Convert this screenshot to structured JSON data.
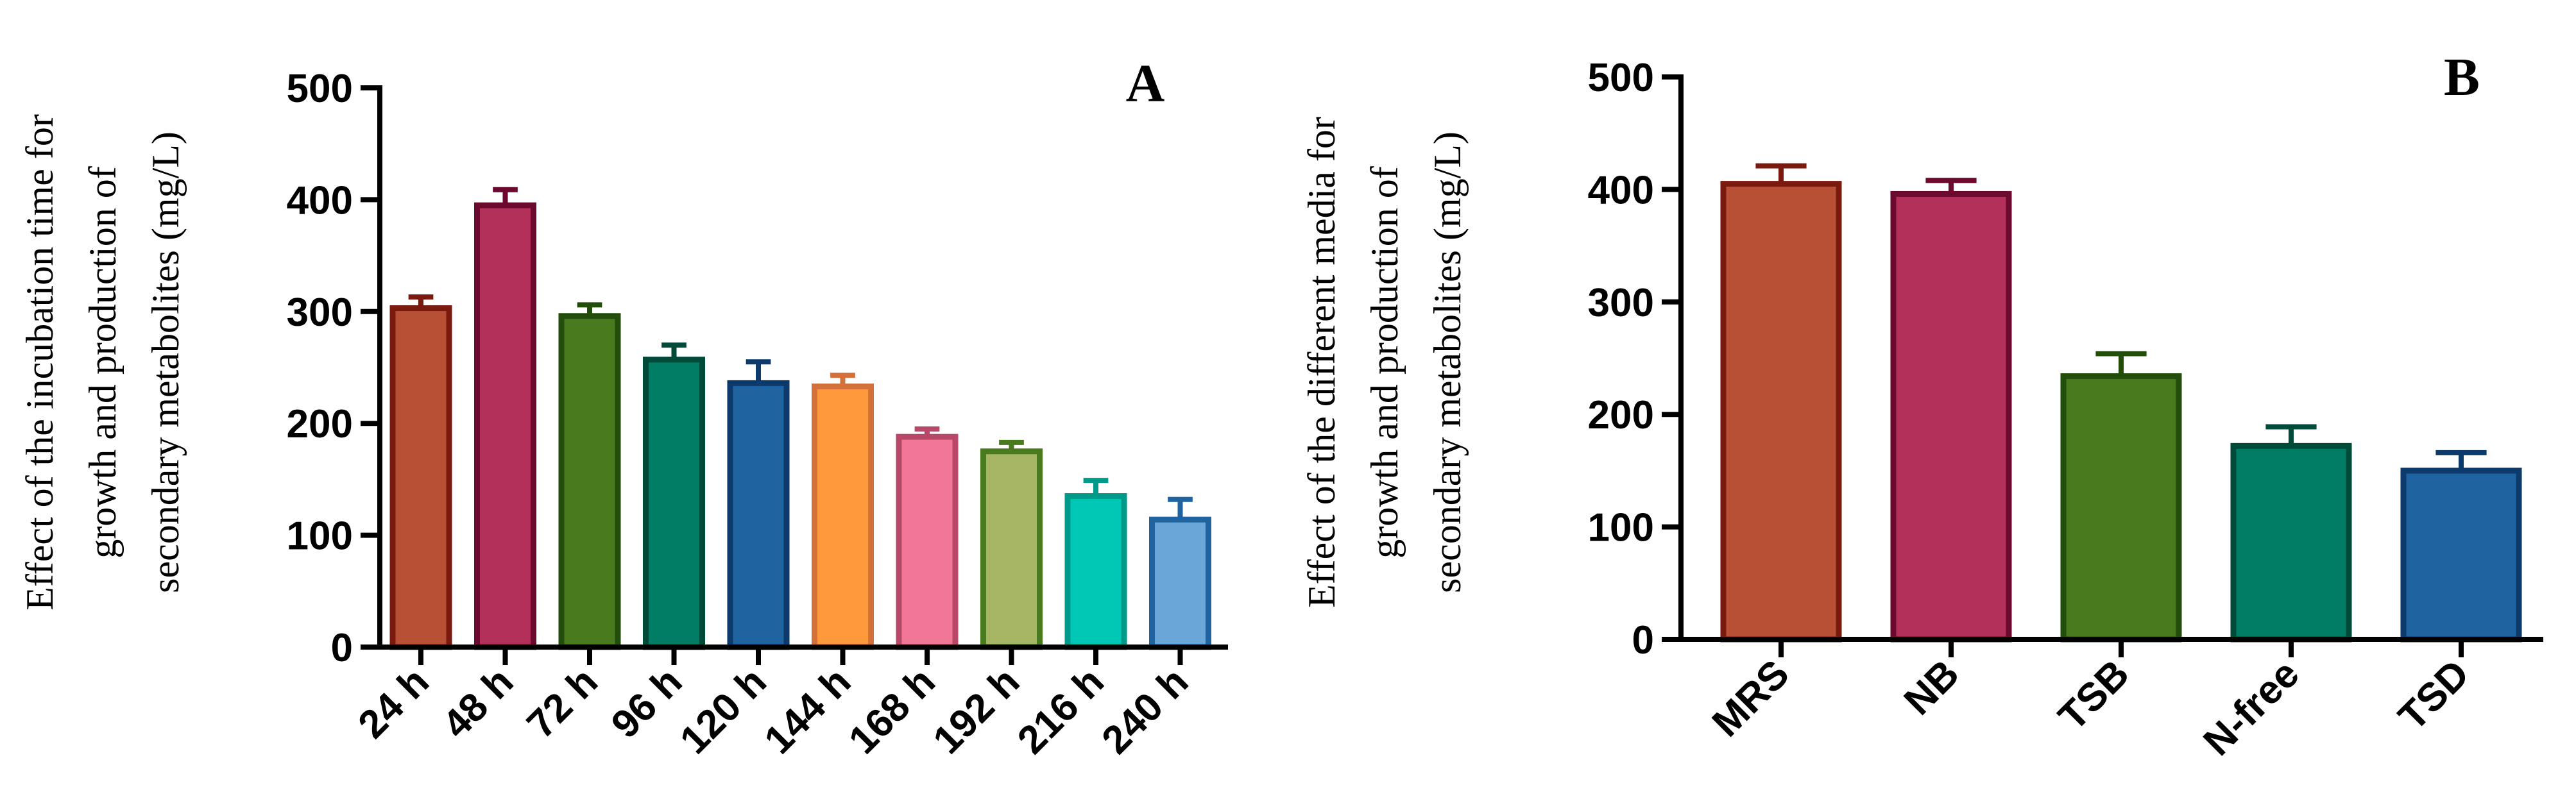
{
  "chart_data": [
    {
      "type": "bar",
      "panel_label": "A",
      "ylabel_lines": [
        "Effect of the incubation time for",
        "growth and production of",
        "secondary metabolites (mg/L)"
      ],
      "xlabel": "",
      "ylim": [
        0,
        500
      ],
      "yticks": [
        0,
        100,
        200,
        300,
        400,
        500
      ],
      "categories": [
        "24 h",
        "48 h",
        "72 h",
        "96 h",
        "120 h",
        "144 h",
        "168 h",
        "192 h",
        "216 h",
        "240 h"
      ],
      "values": [
        303,
        395,
        296,
        257,
        236,
        233,
        188,
        175,
        135,
        114
      ],
      "errors": [
        10,
        14,
        10,
        13,
        19,
        10,
        7,
        8,
        14,
        18
      ],
      "colors": {
        "fill": [
          "#b75034",
          "#b3305a",
          "#4a7a1e",
          "#007d64",
          "#1f63a0",
          "#ff9a3c",
          "#f07896",
          "#a6b664",
          "#00c8b4",
          "#6aa6d8"
        ],
        "stroke": [
          "#7a1a0e",
          "#6b0a2e",
          "#234d0a",
          "#004a3a",
          "#0c3a6a",
          "#d4703a",
          "#b84868",
          "#4a7a1e",
          "#009a8a",
          "#1f63a0"
        ]
      },
      "grid": false
    },
    {
      "type": "bar",
      "panel_label": "B",
      "ylabel_lines": [
        "Effect of the different media for",
        "growth and production of",
        "secondary metabolites (mg/L)"
      ],
      "xlabel": "",
      "ylim": [
        0,
        500
      ],
      "yticks": [
        0,
        100,
        200,
        300,
        400,
        500
      ],
      "categories": [
        "MRS",
        "NB",
        "TSB",
        "N-free",
        "TSD"
      ],
      "values": [
        405,
        396,
        234,
        172,
        150
      ],
      "errors": [
        16,
        12,
        20,
        17,
        16
      ],
      "colors": {
        "fill": [
          "#b75034",
          "#b3305a",
          "#4a7a1e",
          "#007d64",
          "#1f63a0"
        ],
        "stroke": [
          "#7a1a0e",
          "#6b0a2e",
          "#234d0a",
          "#004a3a",
          "#0c3a6a"
        ]
      },
      "grid": false
    }
  ]
}
